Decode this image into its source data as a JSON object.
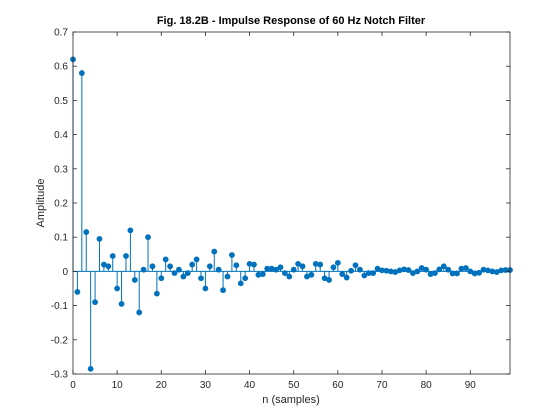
{
  "chart_data": {
    "type": "stem",
    "title": "Fig. 18.2B - Impulse Response of 60 Hz Notch Filter",
    "xlabel": "n (samples)",
    "ylabel": "Amplitude",
    "xlim": [
      0,
      99
    ],
    "ylim": [
      -0.3,
      0.7
    ],
    "xticks": [
      0,
      10,
      20,
      30,
      40,
      50,
      60,
      70,
      80,
      90
    ],
    "yticks": [
      -0.3,
      -0.2,
      -0.1,
      0,
      0.1,
      0.2,
      0.3,
      0.4,
      0.5,
      0.6,
      0.7
    ],
    "grid": false,
    "color": "#0072BD",
    "series": [
      {
        "x": [
          0,
          1,
          2,
          3,
          4,
          5,
          6,
          7,
          8,
          9,
          10,
          11,
          12,
          13,
          14,
          15,
          16,
          17,
          18,
          19,
          20,
          21,
          22,
          23,
          24,
          25,
          26,
          27,
          28,
          29,
          30,
          31,
          32,
          33,
          34,
          35,
          36,
          37,
          38,
          39,
          40,
          41,
          42,
          43,
          44,
          45,
          46,
          47,
          48,
          49,
          50,
          51,
          52,
          53,
          54,
          55,
          56,
          57,
          58,
          59,
          60,
          61,
          62,
          63,
          64,
          65,
          66,
          67,
          68,
          69,
          70,
          71,
          72,
          73,
          74,
          75,
          76,
          77,
          78,
          79,
          80,
          81,
          82,
          83,
          84,
          85,
          86,
          87,
          88,
          89,
          90,
          91,
          92,
          93,
          94,
          95,
          96,
          97,
          98,
          99
        ],
        "values": [
          0.62,
          -0.06,
          0.58,
          0.115,
          -0.285,
          -0.09,
          0.095,
          0.02,
          0.015,
          0.045,
          -0.05,
          -0.095,
          0.045,
          0.12,
          -0.025,
          -0.12,
          0.005,
          0.1,
          0.015,
          -0.065,
          -0.02,
          0.035,
          0.015,
          -0.005,
          0.005,
          -0.015,
          -0.005,
          0.02,
          0.035,
          -0.02,
          -0.05,
          0.015,
          0.058,
          0.005,
          -0.055,
          -0.015,
          0.048,
          0.018,
          -0.035,
          -0.02,
          0.022,
          0.02,
          -0.01,
          -0.008,
          0.008,
          0.008,
          0.005,
          0.012,
          -0.005,
          -0.015,
          0.005,
          0.022,
          0.015,
          -0.015,
          -0.01,
          0.022,
          0.02,
          -0.02,
          -0.025,
          0.012,
          0.025,
          -0.008,
          -0.018,
          0.002,
          0.018,
          0.005,
          -0.012,
          -0.005,
          -0.005,
          0.008,
          0.003,
          0.002,
          0.0,
          -0.002,
          0.003,
          0.006,
          0.004,
          -0.005,
          0.0,
          0.01,
          0.005,
          -0.008,
          -0.005,
          0.006,
          0.015,
          0.005,
          -0.006,
          -0.006,
          0.008,
          0.01,
          0.0,
          -0.006,
          -0.004,
          0.005,
          0.003,
          0.0,
          -0.002,
          0.003,
          0.004,
          0.004
        ]
      }
    ]
  }
}
